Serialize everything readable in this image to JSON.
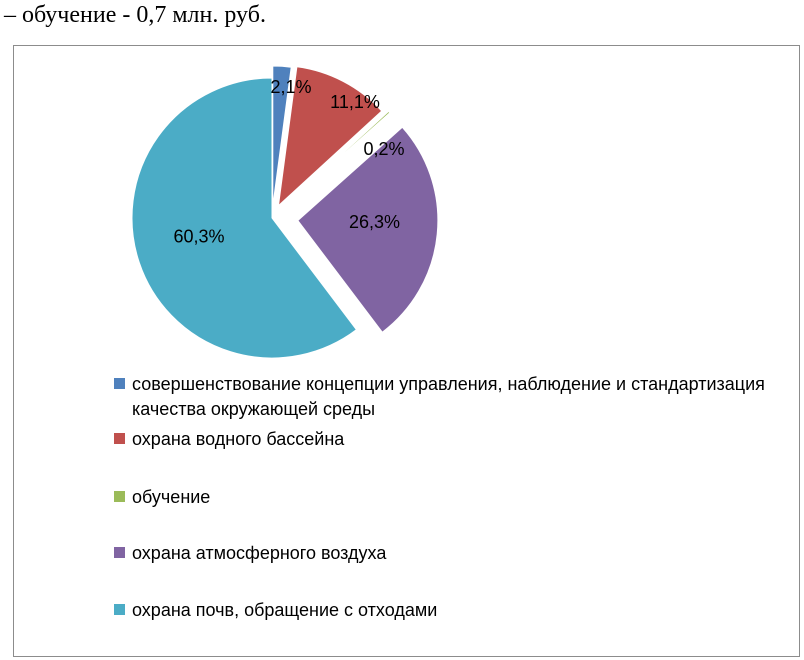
{
  "document": {
    "line_text": "–  обучение - 0,7 млн. руб."
  },
  "chart_data": {
    "type": "pie",
    "values": [
      2.1,
      11.1,
      0.2,
      26.3,
      60.3
    ],
    "data_labels": [
      "2,1%",
      "11,1%",
      "0,2%",
      "26,3%",
      "60,3%"
    ],
    "categories": [
      "совершенствование концепции управления, наблюдение и стандартизация качества окружающей среды",
      "охрана водного бассейна",
      "обучение",
      "охрана атмосферного воздуха",
      "охрана почв, обращение с отходами"
    ],
    "colors": [
      "#4f81bd",
      "#c0504d",
      "#9bbb59",
      "#8064a2",
      "#4bacc6"
    ],
    "exploded": true,
    "legend_position": "bottom",
    "title": ""
  }
}
